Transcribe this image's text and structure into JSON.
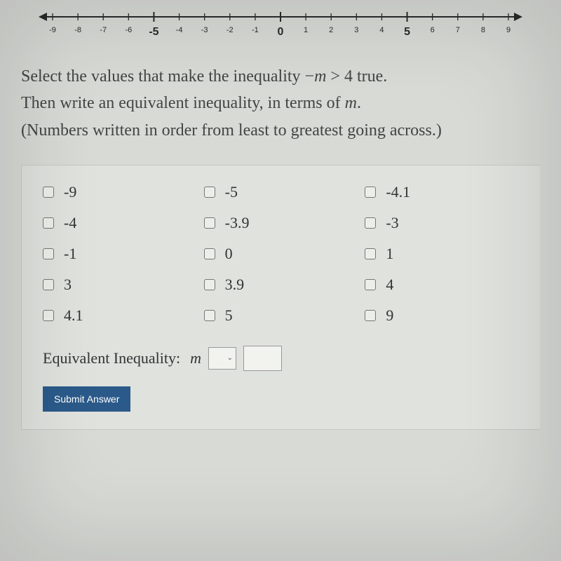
{
  "numberline": {
    "min": -9,
    "max": 9,
    "ticks": [
      -9,
      -8,
      -7,
      -6,
      -5,
      -4,
      -3,
      -2,
      -1,
      0,
      1,
      2,
      3,
      4,
      5,
      6,
      7,
      8,
      9
    ],
    "tick_labels": [
      "-9",
      "-8",
      "-7",
      "-6",
      "-5",
      "-4",
      "-3",
      "-2",
      "-1",
      "0",
      "1",
      "2",
      "3",
      "4",
      "5",
      "6",
      "7",
      "8",
      "9"
    ],
    "highlight_labels": [
      -5,
      0,
      5
    ],
    "axis_color": "#2a2a2a",
    "label_fontsize_small": 11,
    "label_fontsize_large": 16,
    "tick_height": 10,
    "arrow_size": 8
  },
  "question": {
    "line1_pre": "Select the values that make the inequality ",
    "line1_expr_neg": "−",
    "line1_expr_m": "m",
    "line1_expr_gt": " > 4",
    "line1_post": " true.",
    "line2_pre": "Then write an equivalent inequality, in terms of ",
    "line2_m": "m",
    "line2_post": ".",
    "line3": "(Numbers written in order from least to greatest going across.)"
  },
  "options": [
    "-9",
    "-5",
    "-4.1",
    "-4",
    "-3.9",
    "-3",
    "-1",
    "0",
    "1",
    "3",
    "3.9",
    "4",
    "4.1",
    "5",
    "9"
  ],
  "equiv": {
    "label": "Equivalent Inequality: ",
    "var": "m"
  },
  "submit_label": "Submit Answer",
  "colors": {
    "page_bg": "#d8dad6",
    "panel_bg": "#e0e2de",
    "panel_border": "#c7c9c5",
    "text": "#3a3a3a",
    "button_bg": "#2b5a8a",
    "button_text": "#ffffff",
    "checkbox_border": "#777777",
    "input_border": "#999999",
    "input_bg": "#f2f3ef"
  }
}
